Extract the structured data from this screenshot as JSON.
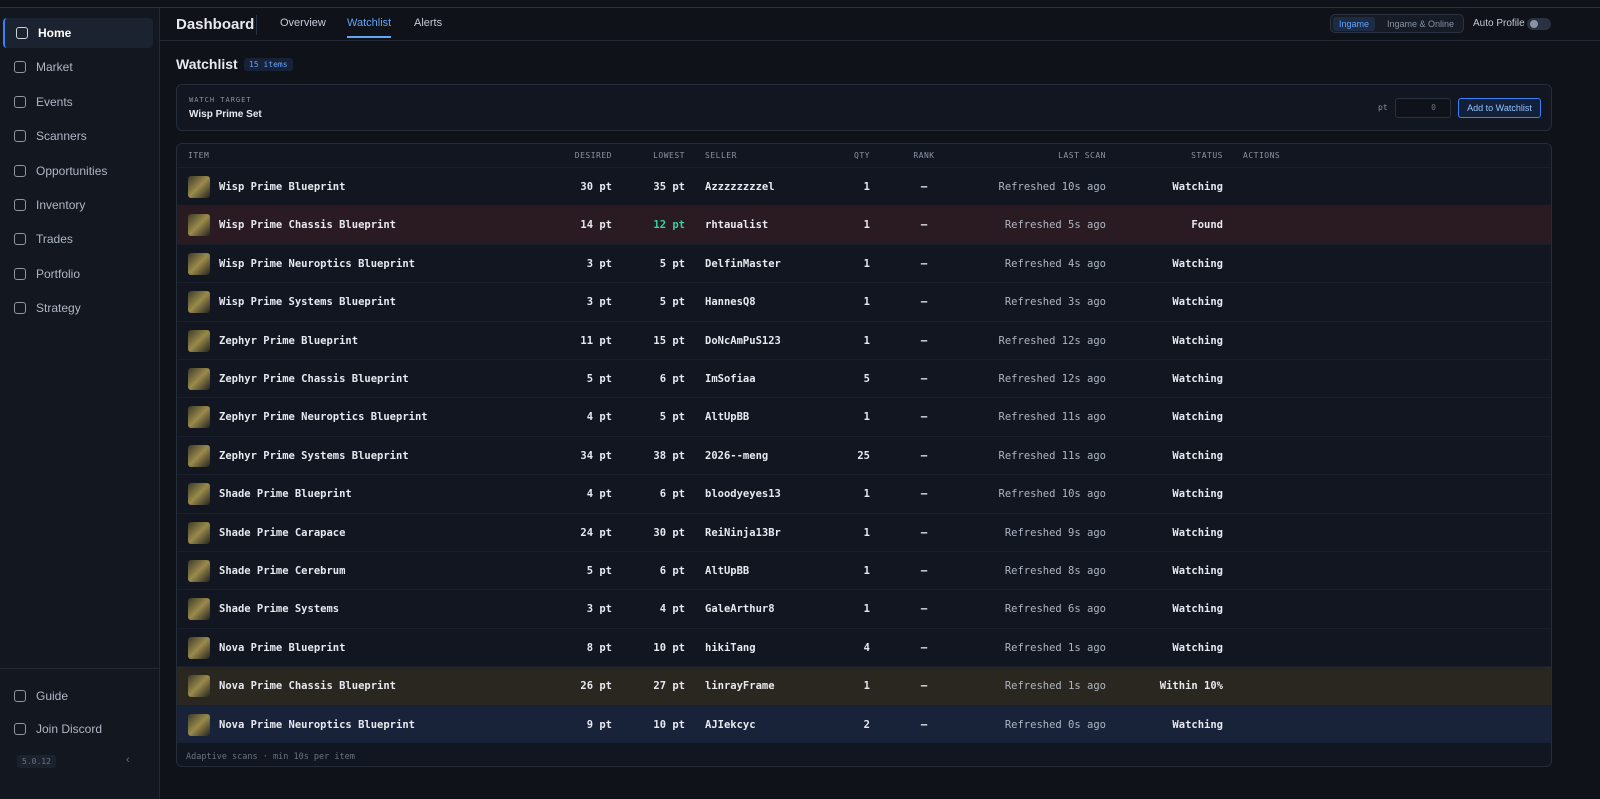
{
  "sidebar": {
    "nav": [
      "Home",
      "Market",
      "Events",
      "Scanners",
      "Opportunities",
      "Inventory",
      "Trades",
      "Portfolio",
      "Strategy"
    ],
    "footer": [
      "Guide",
      "Join Discord"
    ],
    "version": "5.0.12"
  },
  "header": {
    "title": "Dashboard",
    "tabs": [
      "Overview",
      "Watchlist",
      "Alerts"
    ],
    "modes": [
      "Ingame",
      "Ingame & Online"
    ],
    "auto_profile": "Auto Profile"
  },
  "watchlist": {
    "title": "Watchlist",
    "count": "15 items",
    "target_label": "WATCH TARGET",
    "target": "Wisp Prime Set",
    "price_unit": "pt",
    "price_placeholder": "0",
    "add_button": "Add to Watchlist"
  },
  "table": {
    "columns": [
      "ITEM",
      "DESIRED",
      "LOWEST",
      "SELLER",
      "QTY",
      "RANK",
      "LAST SCAN",
      "STATUS",
      "ACTIONS"
    ],
    "rows": [
      [
        "Wisp Prime Blueprint",
        "30 pt",
        "35 pt",
        "Azzzzzzzzel",
        "1",
        "—",
        "Refreshed 10s ago",
        "Watching"
      ],
      [
        "Wisp Prime Chassis Blueprint",
        "14 pt",
        "12 pt",
        "rhtaualist",
        "1",
        "—",
        "Refreshed 5s ago",
        "Found"
      ],
      [
        "Wisp Prime Neuroptics Blueprint",
        "3 pt",
        "5 pt",
        "DelfinMaster",
        "1",
        "—",
        "Refreshed 4s ago",
        "Watching"
      ],
      [
        "Wisp Prime Systems Blueprint",
        "3 pt",
        "5 pt",
        "HannesQ8",
        "1",
        "—",
        "Refreshed 3s ago",
        "Watching"
      ],
      [
        "Zephyr Prime Blueprint",
        "11 pt",
        "15 pt",
        "DoNcAmPuS123",
        "1",
        "—",
        "Refreshed 12s ago",
        "Watching"
      ],
      [
        "Zephyr Prime Chassis Blueprint",
        "5 pt",
        "6 pt",
        "ImSofiaa",
        "5",
        "—",
        "Refreshed 12s ago",
        "Watching"
      ],
      [
        "Zephyr Prime Neuroptics Blueprint",
        "4 pt",
        "5 pt",
        "AltUpBB",
        "1",
        "—",
        "Refreshed 11s ago",
        "Watching"
      ],
      [
        "Zephyr Prime Systems Blueprint",
        "34 pt",
        "38 pt",
        "2026--meng",
        "25",
        "—",
        "Refreshed 11s ago",
        "Watching"
      ],
      [
        "Shade Prime Blueprint",
        "4 pt",
        "6 pt",
        "bloodyeyes13",
        "1",
        "—",
        "Refreshed 10s ago",
        "Watching"
      ],
      [
        "Shade Prime Carapace",
        "24 pt",
        "30 pt",
        "ReiNinja13Br",
        "1",
        "—",
        "Refreshed 9s ago",
        "Watching"
      ],
      [
        "Shade Prime Cerebrum",
        "5 pt",
        "6 pt",
        "AltUpBB",
        "1",
        "—",
        "Refreshed 8s ago",
        "Watching"
      ],
      [
        "Shade Prime Systems",
        "3 pt",
        "4 pt",
        "GaleArthur8",
        "1",
        "—",
        "Refreshed 6s ago",
        "Watching"
      ],
      [
        "Nova Prime Blueprint",
        "8 pt",
        "10 pt",
        "hikiTang",
        "4",
        "—",
        "Refreshed 1s ago",
        "Watching"
      ],
      [
        "Nova Prime Chassis Blueprint",
        "26 pt",
        "27 pt",
        "linrayFrame",
        "1",
        "—",
        "Refreshed 1s ago",
        "Within 10%"
      ],
      [
        "Nova Prime Neuroptics Blueprint",
        "9 pt",
        "10 pt",
        "AJIekcyc",
        "2",
        "—",
        "Refreshed 0s ago",
        "Watching"
      ]
    ],
    "footer": "Adaptive scans · min 10s per item"
  }
}
